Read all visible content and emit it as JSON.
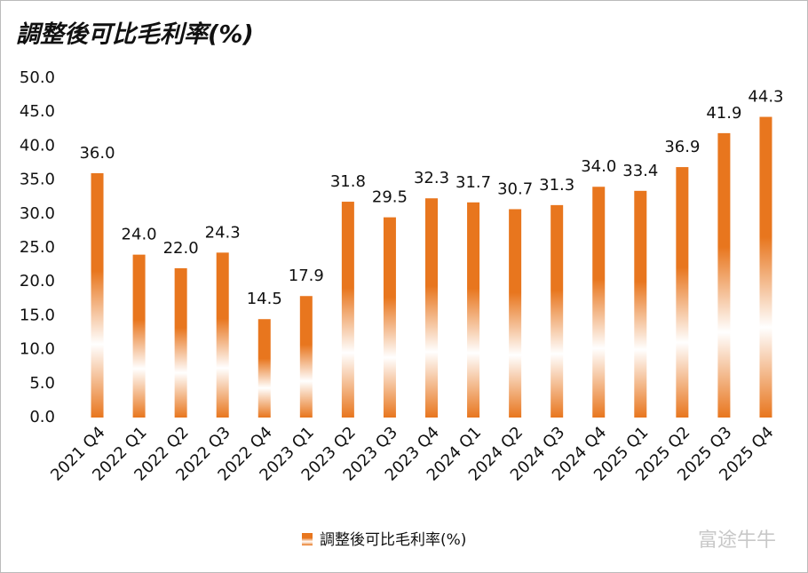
{
  "chart_data": {
    "type": "bar",
    "title": "調整後可比毛利率(%)",
    "categories": [
      "2021 Q4",
      "2022 Q1",
      "2022 Q2",
      "2022 Q3",
      "2022 Q4",
      "2023 Q1",
      "2023 Q2",
      "2023 Q3",
      "2023 Q4",
      "2024 Q1",
      "2024 Q2",
      "2024 Q3",
      "2024 Q4",
      "2025 Q1",
      "2025 Q2",
      "2025 Q3",
      "2025 Q4"
    ],
    "series": [
      {
        "name": "調整後可比毛利率(%)",
        "color": "#e8761e",
        "values": [
          36,
          24,
          22,
          24.3,
          14.5,
          17.9,
          31.8,
          29.5,
          32.3,
          31.7,
          30.7,
          31.3,
          34,
          33.4,
          36.9,
          41.9,
          44.3
        ],
        "value_labels": [
          "36.0",
          "24.0",
          "22.0",
          "24.3",
          "14.5",
          "17.9",
          "31.8",
          "29.5",
          "32.3",
          "31.7",
          "30.7",
          "31.3",
          "34.0",
          "33.4",
          "36.9",
          "41.9",
          "44.3"
        ]
      }
    ],
    "ylim": [
      0,
      50
    ],
    "yticks": [
      {
        "value": 0,
        "label": "0.0"
      },
      {
        "value": 5,
        "label": "5.0"
      },
      {
        "value": 10,
        "label": "10.0"
      },
      {
        "value": 15,
        "label": "15.0"
      },
      {
        "value": 20,
        "label": "20.0"
      },
      {
        "value": 25,
        "label": "25.0"
      },
      {
        "value": 30,
        "label": "30.0"
      },
      {
        "value": 35,
        "label": "35.0"
      },
      {
        "value": 40,
        "label": "40.0"
      },
      {
        "value": 45,
        "label": "45.0"
      },
      {
        "value": 50,
        "label": "50.0"
      }
    ],
    "grid": false,
    "legend": "bottom",
    "watermark": "富途牛牛"
  }
}
